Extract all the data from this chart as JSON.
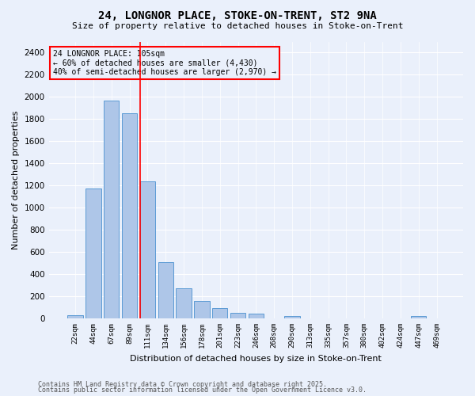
{
  "title_line1": "24, LONGNOR PLACE, STOKE-ON-TRENT, ST2 9NA",
  "title_line2": "Size of property relative to detached houses in Stoke-on-Trent",
  "xlabel": "Distribution of detached houses by size in Stoke-on-Trent",
  "ylabel": "Number of detached properties",
  "categories": [
    "22sqm",
    "44sqm",
    "67sqm",
    "89sqm",
    "111sqm",
    "134sqm",
    "156sqm",
    "178sqm",
    "201sqm",
    "223sqm",
    "246sqm",
    "268sqm",
    "290sqm",
    "313sqm",
    "335sqm",
    "357sqm",
    "380sqm",
    "402sqm",
    "424sqm",
    "447sqm",
    "469sqm"
  ],
  "values": [
    30,
    1175,
    1970,
    1855,
    1240,
    510,
    275,
    155,
    90,
    50,
    45,
    0,
    25,
    0,
    0,
    0,
    0,
    0,
    0,
    20,
    0
  ],
  "bar_color": "#aec6e8",
  "bar_edge_color": "#5b9bd5",
  "annotation_line1": "24 LONGNOR PLACE: 105sqm",
  "annotation_line2": "← 60% of detached houses are smaller (4,430)",
  "annotation_line3": "40% of semi-detached houses are larger (2,970) →",
  "vline_color": "red",
  "annotation_box_color": "red",
  "background_color": "#eaf0fb",
  "grid_color": "#ffffff",
  "footer_line1": "Contains HM Land Registry data © Crown copyright and database right 2025.",
  "footer_line2": "Contains public sector information licensed under the Open Government Licence v3.0.",
  "ylim": [
    0,
    2500
  ],
  "yticks": [
    0,
    200,
    400,
    600,
    800,
    1000,
    1200,
    1400,
    1600,
    1800,
    2000,
    2200,
    2400
  ]
}
